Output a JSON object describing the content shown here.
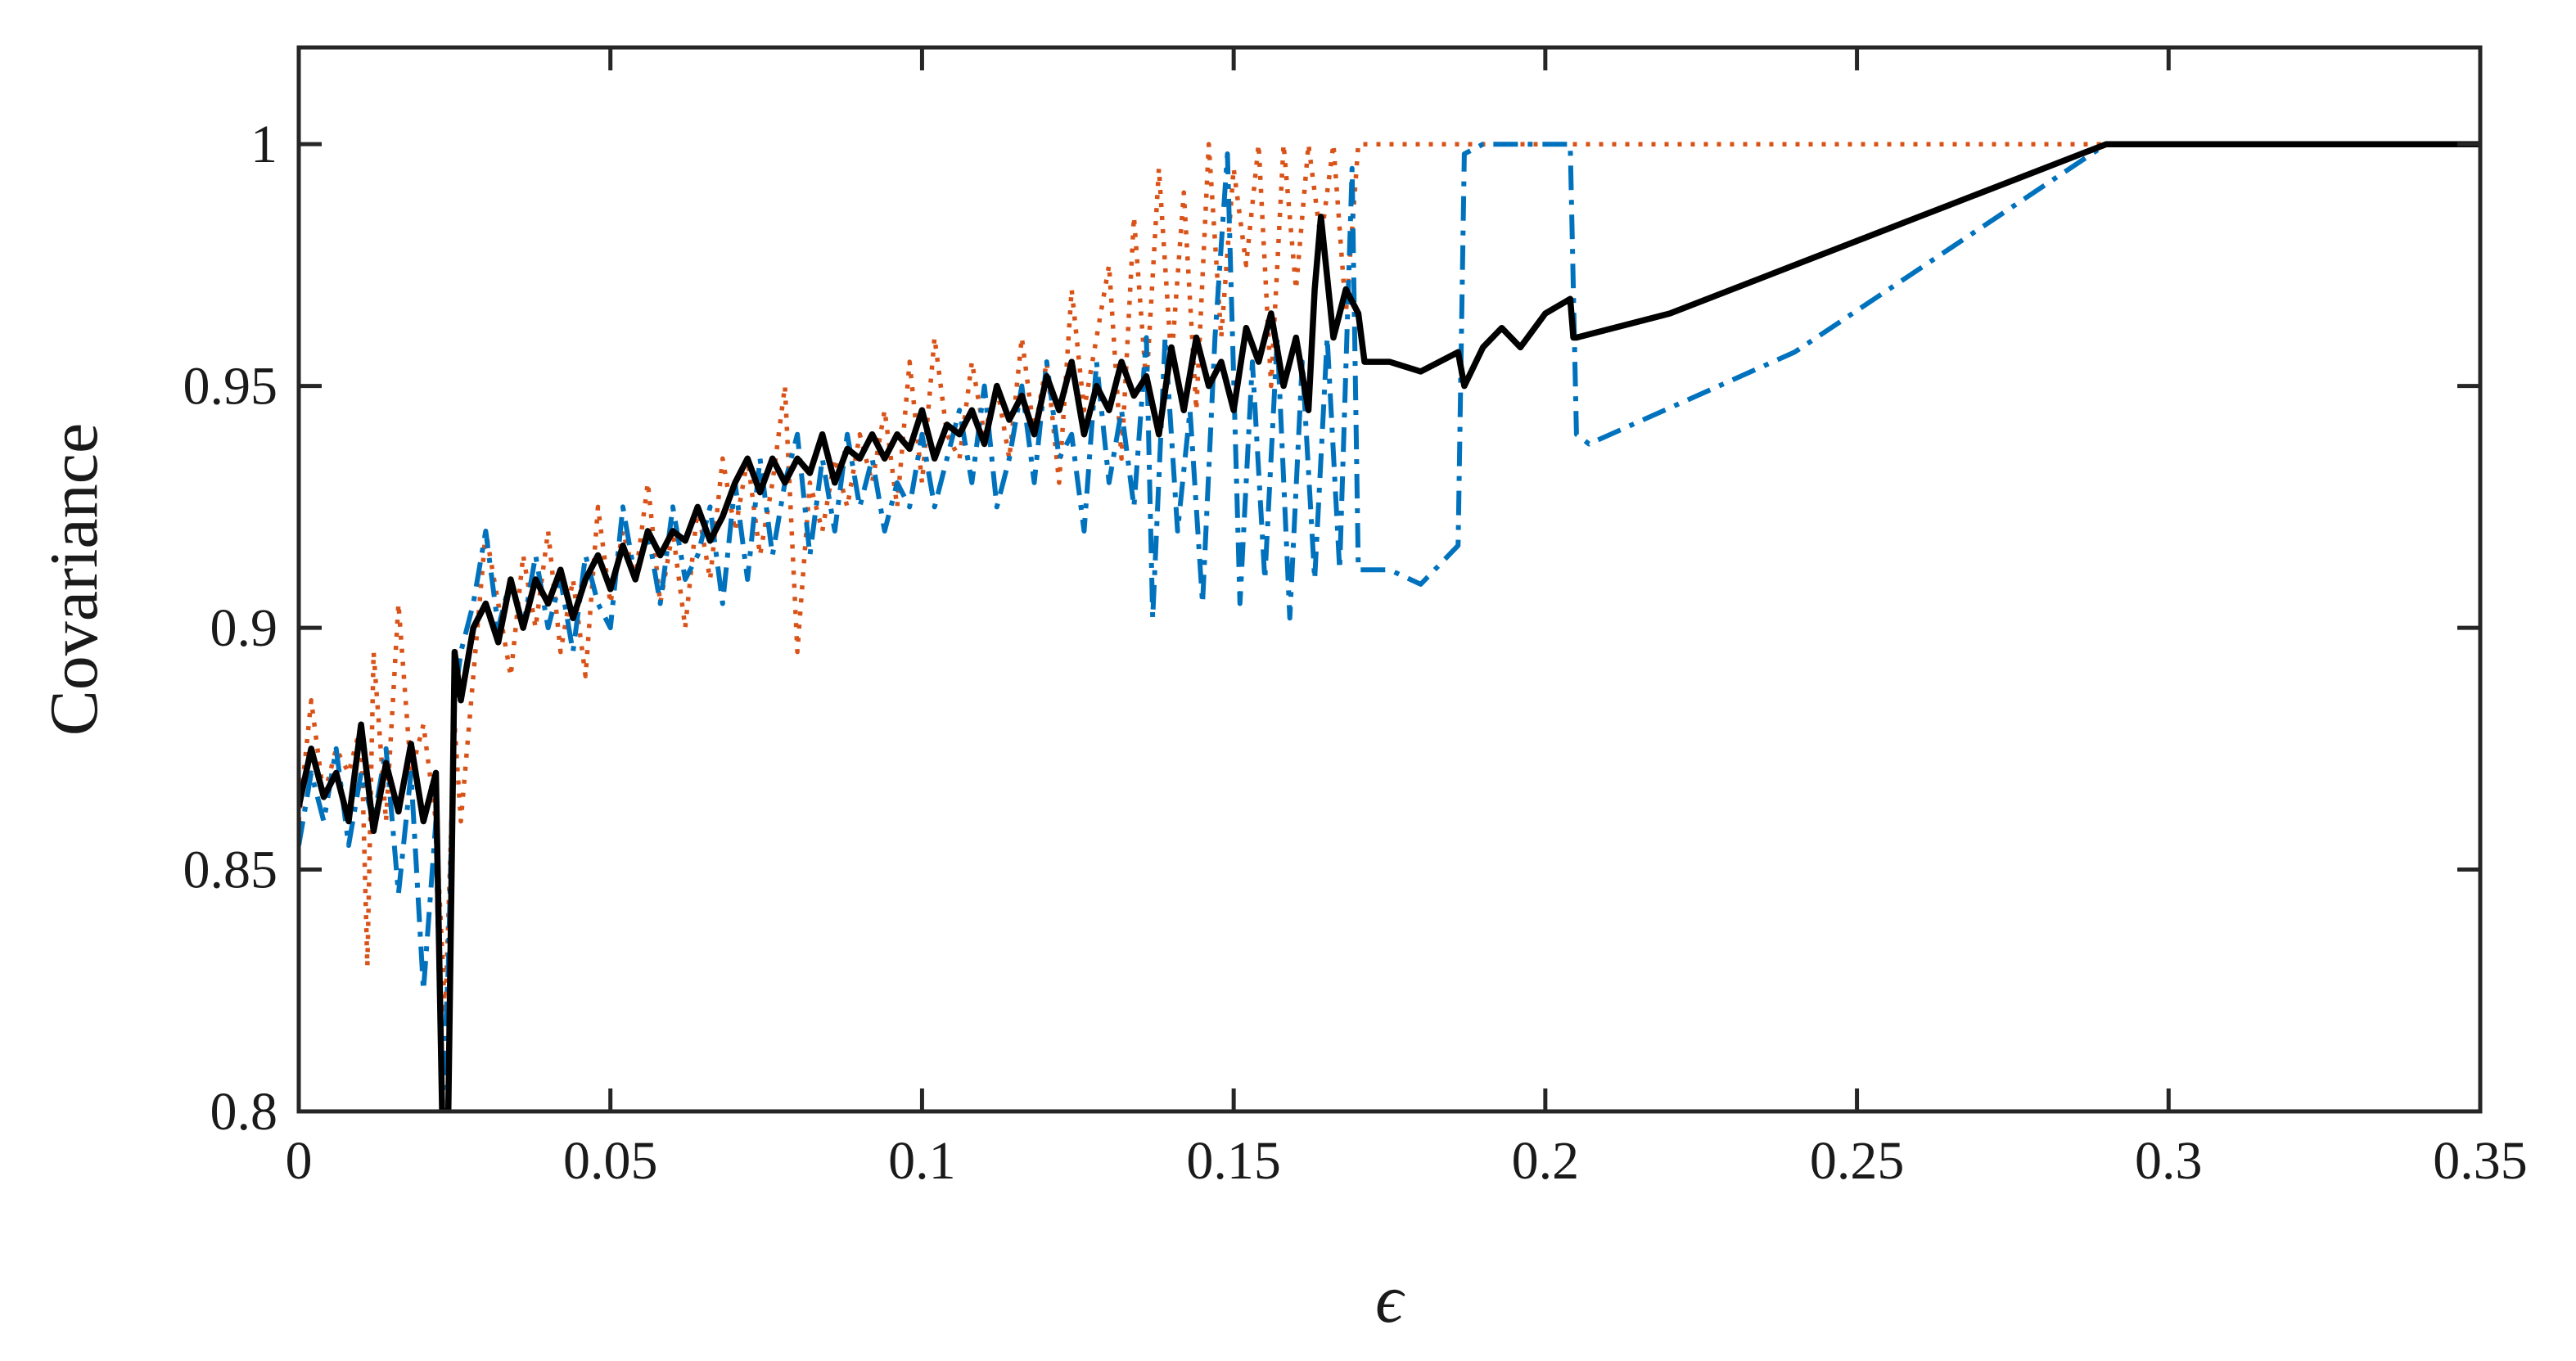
{
  "chart_data": {
    "type": "line",
    "xlabel": "ϵ",
    "ylabel": "Covariance",
    "xlim": [
      0,
      0.35
    ],
    "ylim": [
      0.8,
      1.02
    ],
    "xticks": [
      "0",
      "0.05",
      "0.1",
      "0.15",
      "0.2",
      "0.25",
      "0.3",
      "0.35"
    ],
    "yticks": [
      "0.8",
      "0.85",
      "0.9",
      "0.95",
      "1"
    ],
    "grid": false,
    "legend": "none",
    "series": [
      {
        "color": "#D95319",
        "style": "dotted",
        "x": [
          0,
          0.002,
          0.004,
          0.006,
          0.008,
          0.01,
          0.011,
          0.012,
          0.014,
          0.016,
          0.018,
          0.02,
          0.022,
          0.0235,
          0.025,
          0.026,
          0.028,
          0.03,
          0.032,
          0.034,
          0.036,
          0.038,
          0.04,
          0.042,
          0.044,
          0.046,
          0.048,
          0.05,
          0.052,
          0.054,
          0.056,
          0.058,
          0.06,
          0.062,
          0.064,
          0.066,
          0.068,
          0.07,
          0.072,
          0.074,
          0.076,
          0.078,
          0.08,
          0.082,
          0.084,
          0.086,
          0.088,
          0.09,
          0.092,
          0.094,
          0.096,
          0.098,
          0.1,
          0.102,
          0.104,
          0.106,
          0.108,
          0.11,
          0.112,
          0.114,
          0.116,
          0.118,
          0.12,
          0.122,
          0.124,
          0.126,
          0.128,
          0.13,
          0.132,
          0.134,
          0.136,
          0.138,
          0.14,
          0.142,
          0.144,
          0.146,
          0.148,
          0.15,
          0.152,
          0.154,
          0.156,
          0.158,
          0.16,
          0.162,
          0.164,
          0.166,
          0.168,
          0.17,
          0.175,
          0.18,
          0.19,
          0.2,
          0.22,
          0.25,
          0.28,
          0.3,
          0.35
        ],
        "y": [
          0.86,
          0.885,
          0.865,
          0.875,
          0.87,
          0.88,
          0.83,
          0.895,
          0.86,
          0.905,
          0.87,
          0.88,
          0.86,
          0.82,
          0.88,
          0.86,
          0.89,
          0.92,
          0.905,
          0.89,
          0.915,
          0.9,
          0.92,
          0.895,
          0.91,
          0.89,
          0.925,
          0.905,
          0.92,
          0.91,
          0.93,
          0.905,
          0.92,
          0.9,
          0.925,
          0.91,
          0.935,
          0.92,
          0.935,
          0.915,
          0.93,
          0.95,
          0.895,
          0.93,
          0.92,
          0.935,
          0.925,
          0.94,
          0.93,
          0.945,
          0.925,
          0.955,
          0.93,
          0.96,
          0.94,
          0.935,
          0.955,
          0.94,
          0.95,
          0.935,
          0.96,
          0.94,
          0.955,
          0.93,
          0.97,
          0.945,
          0.96,
          0.975,
          0.935,
          0.985,
          0.95,
          0.995,
          0.955,
          0.99,
          0.945,
          1.0,
          0.96,
          0.995,
          0.975,
          1.0,
          0.95,
          1.0,
          0.97,
          1.0,
          0.98,
          1.0,
          0.965,
          1.0,
          1.0,
          1.0,
          1.0,
          1.0,
          1.0,
          1.0,
          1.0,
          1.0,
          1.0
        ]
      },
      {
        "color": "#0072BD",
        "style": "dashdot",
        "x": [
          0,
          0.002,
          0.004,
          0.006,
          0.008,
          0.01,
          0.012,
          0.014,
          0.016,
          0.018,
          0.02,
          0.022,
          0.023,
          0.024,
          0.025,
          0.026,
          0.028,
          0.03,
          0.032,
          0.034,
          0.036,
          0.038,
          0.04,
          0.042,
          0.044,
          0.046,
          0.048,
          0.05,
          0.052,
          0.054,
          0.056,
          0.058,
          0.06,
          0.062,
          0.064,
          0.066,
          0.068,
          0.07,
          0.072,
          0.074,
          0.076,
          0.078,
          0.08,
          0.082,
          0.084,
          0.086,
          0.088,
          0.09,
          0.092,
          0.094,
          0.096,
          0.098,
          0.1,
          0.102,
          0.104,
          0.106,
          0.108,
          0.11,
          0.112,
          0.114,
          0.116,
          0.118,
          0.12,
          0.122,
          0.124,
          0.126,
          0.128,
          0.13,
          0.132,
          0.134,
          0.136,
          0.137,
          0.139,
          0.141,
          0.143,
          0.145,
          0.147,
          0.149,
          0.151,
          0.153,
          0.155,
          0.157,
          0.159,
          0.161,
          0.163,
          0.165,
          0.167,
          0.169,
          0.17,
          0.175,
          0.18,
          0.186,
          0.187,
          0.19,
          0.204,
          0.205,
          0.207,
          0.24,
          0.29,
          0.3,
          0.35
        ],
        "y": [
          0.855,
          0.87,
          0.86,
          0.875,
          0.855,
          0.87,
          0.86,
          0.875,
          0.845,
          0.87,
          0.825,
          0.86,
          0.8,
          0.83,
          0.885,
          0.895,
          0.905,
          0.92,
          0.9,
          0.91,
          0.9,
          0.915,
          0.9,
          0.91,
          0.895,
          0.915,
          0.905,
          0.9,
          0.925,
          0.91,
          0.92,
          0.905,
          0.925,
          0.91,
          0.915,
          0.925,
          0.905,
          0.93,
          0.91,
          0.935,
          0.915,
          0.93,
          0.94,
          0.915,
          0.935,
          0.92,
          0.94,
          0.925,
          0.935,
          0.92,
          0.93,
          0.925,
          0.94,
          0.925,
          0.935,
          0.945,
          0.93,
          0.95,
          0.925,
          0.935,
          0.95,
          0.93,
          0.955,
          0.935,
          0.94,
          0.92,
          0.955,
          0.93,
          0.945,
          0.925,
          0.96,
          0.902,
          0.96,
          0.92,
          0.945,
          0.905,
          0.96,
          0.998,
          0.905,
          0.955,
          0.91,
          0.96,
          0.902,
          0.955,
          0.91,
          0.96,
          0.912,
          0.995,
          0.912,
          0.912,
          0.909,
          0.917,
          0.998,
          1.0,
          1.0,
          0.94,
          0.938,
          0.957,
          1.0,
          1.0,
          1.0
        ]
      },
      {
        "color": "#000000",
        "style": "solid",
        "x": [
          0,
          0.002,
          0.004,
          0.006,
          0.008,
          0.01,
          0.012,
          0.014,
          0.016,
          0.018,
          0.02,
          0.022,
          0.023,
          0.024,
          0.025,
          0.026,
          0.028,
          0.03,
          0.032,
          0.034,
          0.036,
          0.038,
          0.04,
          0.042,
          0.044,
          0.046,
          0.048,
          0.05,
          0.052,
          0.054,
          0.056,
          0.058,
          0.06,
          0.062,
          0.064,
          0.066,
          0.068,
          0.07,
          0.072,
          0.074,
          0.076,
          0.078,
          0.08,
          0.082,
          0.084,
          0.086,
          0.088,
          0.09,
          0.092,
          0.094,
          0.096,
          0.098,
          0.1,
          0.102,
          0.104,
          0.106,
          0.108,
          0.11,
          0.112,
          0.114,
          0.116,
          0.118,
          0.12,
          0.122,
          0.124,
          0.126,
          0.128,
          0.13,
          0.132,
          0.134,
          0.136,
          0.138,
          0.14,
          0.142,
          0.144,
          0.146,
          0.148,
          0.15,
          0.152,
          0.154,
          0.156,
          0.158,
          0.16,
          0.162,
          0.163,
          0.164,
          0.166,
          0.168,
          0.17,
          0.171,
          0.175,
          0.18,
          0.186,
          0.187,
          0.19,
          0.193,
          0.196,
          0.2,
          0.204,
          0.2045,
          0.205,
          0.22,
          0.24,
          0.26,
          0.28,
          0.29,
          0.3,
          0.35
        ],
        "y": [
          0.863,
          0.875,
          0.865,
          0.87,
          0.86,
          0.88,
          0.858,
          0.872,
          0.862,
          0.876,
          0.86,
          0.87,
          0.8,
          0.8,
          0.895,
          0.885,
          0.9,
          0.905,
          0.897,
          0.91,
          0.9,
          0.91,
          0.905,
          0.912,
          0.902,
          0.91,
          0.915,
          0.908,
          0.917,
          0.91,
          0.92,
          0.915,
          0.92,
          0.918,
          0.925,
          0.918,
          0.923,
          0.93,
          0.935,
          0.928,
          0.935,
          0.93,
          0.935,
          0.932,
          0.94,
          0.93,
          0.937,
          0.935,
          0.94,
          0.935,
          0.94,
          0.937,
          0.945,
          0.935,
          0.942,
          0.94,
          0.945,
          0.938,
          0.95,
          0.943,
          0.948,
          0.94,
          0.952,
          0.945,
          0.955,
          0.94,
          0.95,
          0.945,
          0.955,
          0.948,
          0.952,
          0.94,
          0.958,
          0.945,
          0.96,
          0.95,
          0.955,
          0.945,
          0.962,
          0.955,
          0.965,
          0.95,
          0.96,
          0.945,
          0.97,
          0.985,
          0.96,
          0.97,
          0.965,
          0.955,
          0.955,
          0.953,
          0.957,
          0.95,
          0.958,
          0.962,
          0.958,
          0.965,
          0.968,
          0.96,
          0.96,
          0.965,
          0.975,
          0.985,
          0.995,
          1.0,
          1.0,
          1.0
        ]
      }
    ]
  }
}
